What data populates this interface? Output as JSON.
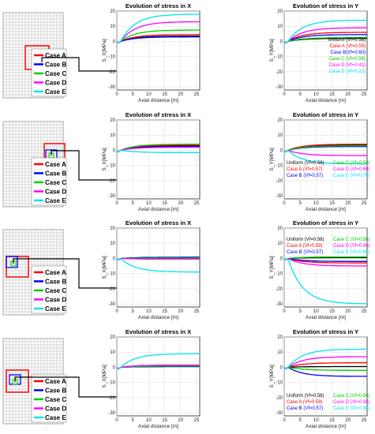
{
  "colors": {
    "Uniform": "#000000",
    "Case A": "#ff0000",
    "Case B": "#0000ff",
    "Case C": "#00cc00",
    "Case D": "#ff00ff",
    "Case E": "#00e5ee"
  },
  "case_labels": [
    "Case A",
    "Case B",
    "Case C",
    "Case D",
    "Case E"
  ],
  "chart_data": [
    {
      "type": "line",
      "row": 1,
      "component": "X",
      "title": "Evolution of stress in X",
      "xlabel": "Axial distance [m]",
      "ylabel": "S_X[MPa]",
      "xlim": [
        0,
        26
      ],
      "ylim": [
        -32,
        20
      ],
      "xticks": [
        0,
        5,
        10,
        15,
        20,
        25
      ],
      "yticks": [
        -30,
        -20,
        -10,
        0,
        10,
        20
      ],
      "grid": true,
      "legend_text": [],
      "inset": "dense-center",
      "series": [
        {
          "name": "Uniform",
          "final": 3.5
        },
        {
          "name": "Case A",
          "final": 4.5
        },
        {
          "name": "Case B",
          "final": 3.0
        },
        {
          "name": "Case C",
          "final": 7.5
        },
        {
          "name": "Case D",
          "final": 13.0
        },
        {
          "name": "Case E",
          "final": 18.0
        }
      ]
    },
    {
      "type": "line",
      "row": 1,
      "component": "Y",
      "title": "Evolution of stress in Y",
      "xlabel": "Axial distance [m]",
      "ylabel": "S_Y[MPa]",
      "xlim": [
        0,
        26
      ],
      "ylim": [
        -32,
        20
      ],
      "xticks": [
        0,
        5,
        10,
        15,
        20,
        25
      ],
      "yticks": [
        -30,
        -20,
        -10,
        0,
        10,
        20
      ],
      "grid": true,
      "legend_text": [
        "Uniform (Vf=0.58)",
        "Case A (Vf=0.55)",
        "Case B(Vf=0.60)",
        "Case C (Vf=0.56)",
        "Case D (Vf=0.41)",
        "Case E (Vf=0.22)"
      ],
      "series": [
        {
          "name": "Uniform",
          "final": 2.0
        },
        {
          "name": "Case A",
          "final": 6.0
        },
        {
          "name": "Case B",
          "final": 4.5
        },
        {
          "name": "Case C",
          "final": 2.5
        },
        {
          "name": "Case D",
          "final": 9.0
        },
        {
          "name": "Case E",
          "final": 14.0
        }
      ]
    },
    {
      "type": "line",
      "row": 2,
      "component": "X",
      "title": "Evolution of stress in X",
      "xlabel": "Axial distance [m]",
      "ylabel": "S_X[MPa]",
      "xlim": [
        0,
        26
      ],
      "ylim": [
        -32,
        20
      ],
      "xticks": [
        0,
        5,
        10,
        15,
        20,
        25
      ],
      "yticks": [
        -30,
        -20,
        -10,
        0,
        10,
        20
      ],
      "grid": true,
      "legend_text": [],
      "inset": "dense-right",
      "series": [
        {
          "name": "Uniform",
          "final": 3.0
        },
        {
          "name": "Case A",
          "final": 3.5
        },
        {
          "name": "Case B",
          "final": 2.5
        },
        {
          "name": "Case C",
          "final": 4.0
        },
        {
          "name": "Case D",
          "final": 2.0
        },
        {
          "name": "Case E",
          "final": -1.5
        }
      ]
    },
    {
      "type": "line",
      "row": 2,
      "component": "Y",
      "title": "Evolution of stress in Y",
      "xlabel": "Axial distance [m]",
      "ylabel": "S_Y[MPa]",
      "xlim": [
        0,
        26
      ],
      "ylim": [
        -32,
        20
      ],
      "xticks": [
        0,
        5,
        10,
        15,
        20,
        25
      ],
      "yticks": [
        -30,
        -20,
        -10,
        0,
        10,
        20
      ],
      "grid": true,
      "legend_text": [
        "Uniform (Vf=0.58)",
        "Case A (Vf=0.57)",
        "Case B (Vf=0.57)",
        "Case C (Vf=0.59)",
        "Case D (Vf=0.69)",
        "Case E (Vf=0.79)"
      ],
      "series": [
        {
          "name": "Uniform",
          "final": 3.5
        },
        {
          "name": "Case A",
          "final": 4.0
        },
        {
          "name": "Case B",
          "final": 2.5
        },
        {
          "name": "Case C",
          "final": 3.0
        },
        {
          "name": "Case D",
          "final": -3.5
        },
        {
          "name": "Case E",
          "final": -9.0
        }
      ]
    },
    {
      "type": "line",
      "row": 3,
      "component": "X",
      "title": "Evolution of stress in X",
      "xlabel": "Axial distance [m]",
      "ylabel": "S_X[MPa]",
      "xlim": [
        0,
        26
      ],
      "ylim": [
        -32,
        20
      ],
      "xticks": [
        0,
        5,
        10,
        15,
        20,
        25
      ],
      "yticks": [
        -30,
        -20,
        -10,
        0,
        10,
        20
      ],
      "grid": true,
      "legend_text": [],
      "inset": "dense-left",
      "series": [
        {
          "name": "Uniform",
          "final": 0.5
        },
        {
          "name": "Case A",
          "final": 0.0
        },
        {
          "name": "Case B",
          "final": 0.8
        },
        {
          "name": "Case C",
          "final": 0.3
        },
        {
          "name": "Case D",
          "final": -0.5
        },
        {
          "name": "Case E",
          "final": -9.0
        }
      ]
    },
    {
      "type": "line",
      "row": 3,
      "component": "Y",
      "title": "Evolution of stress in Y",
      "xlabel": "Axial distance [m]",
      "ylabel": "S_Y[MPa]",
      "xlim": [
        0,
        26
      ],
      "ylim": [
        -32,
        20
      ],
      "xticks": [
        0,
        5,
        10,
        15,
        20,
        25
      ],
      "yticks": [
        -30,
        -20,
        -10,
        0,
        10,
        20
      ],
      "grid": true,
      "legend_text": [
        "Uniform (Vf=0.58)",
        "Case A (Vf=0.59)",
        "Case B (Vf=0.57)",
        "Case C (Vf=0.56)",
        "Case D (Vf=0.60)",
        "Case E (Vf=0.89)"
      ],
      "series": [
        {
          "name": "Uniform",
          "final": 0.5
        },
        {
          "name": "Case A",
          "final": -3.0
        },
        {
          "name": "Case B",
          "final": -2.0
        },
        {
          "name": "Case C",
          "final": 1.0
        },
        {
          "name": "Case D",
          "final": -5.0
        },
        {
          "name": "Case E",
          "final": -30.0
        }
      ]
    },
    {
      "type": "line",
      "row": 4,
      "component": "X",
      "title": "Evolution of stress in X",
      "xlabel": "Axial distance [m]",
      "ylabel": "S_X[MPa]",
      "xlim": [
        0,
        26
      ],
      "ylim": [
        -32,
        20
      ],
      "xticks": [
        0,
        5,
        10,
        15,
        20,
        25
      ],
      "yticks": [
        -30,
        -20,
        -10,
        0,
        10,
        20
      ],
      "grid": true,
      "legend_text": [],
      "inset": "sparse-left",
      "series": [
        {
          "name": "Uniform",
          "final": 0.5
        },
        {
          "name": "Case A",
          "final": 1.0
        },
        {
          "name": "Case B",
          "final": 0.5
        },
        {
          "name": "Case C",
          "final": 0.8
        },
        {
          "name": "Case D",
          "final": 1.5
        },
        {
          "name": "Case E",
          "final": 9.0
        }
      ]
    },
    {
      "type": "line",
      "row": 4,
      "component": "Y",
      "title": "Evolution of stress in Y",
      "xlabel": "Axial distance [m]",
      "ylabel": "S_Y[MPa]",
      "xlim": [
        0,
        26
      ],
      "ylim": [
        -32,
        20
      ],
      "xticks": [
        0,
        5,
        10,
        15,
        20,
        25
      ],
      "yticks": [
        -30,
        -20,
        -10,
        0,
        10,
        20
      ],
      "grid": true,
      "legend_text": [
        "Uniform (Vf=0.58)",
        "Case A (Vf=0.59)",
        "Case B (Vf=0.57)",
        "Case C (Vf=0.56)",
        "Case D (Vf=0.43)",
        "Case E (Vf=0.38)"
      ],
      "series": [
        {
          "name": "Uniform",
          "final": 0.5
        },
        {
          "name": "Case A",
          "final": 3.0
        },
        {
          "name": "Case B",
          "final": -6.0
        },
        {
          "name": "Case C",
          "final": -2.0
        },
        {
          "name": "Case D",
          "final": 7.0
        },
        {
          "name": "Case E",
          "final": 12.0
        }
      ]
    }
  ]
}
